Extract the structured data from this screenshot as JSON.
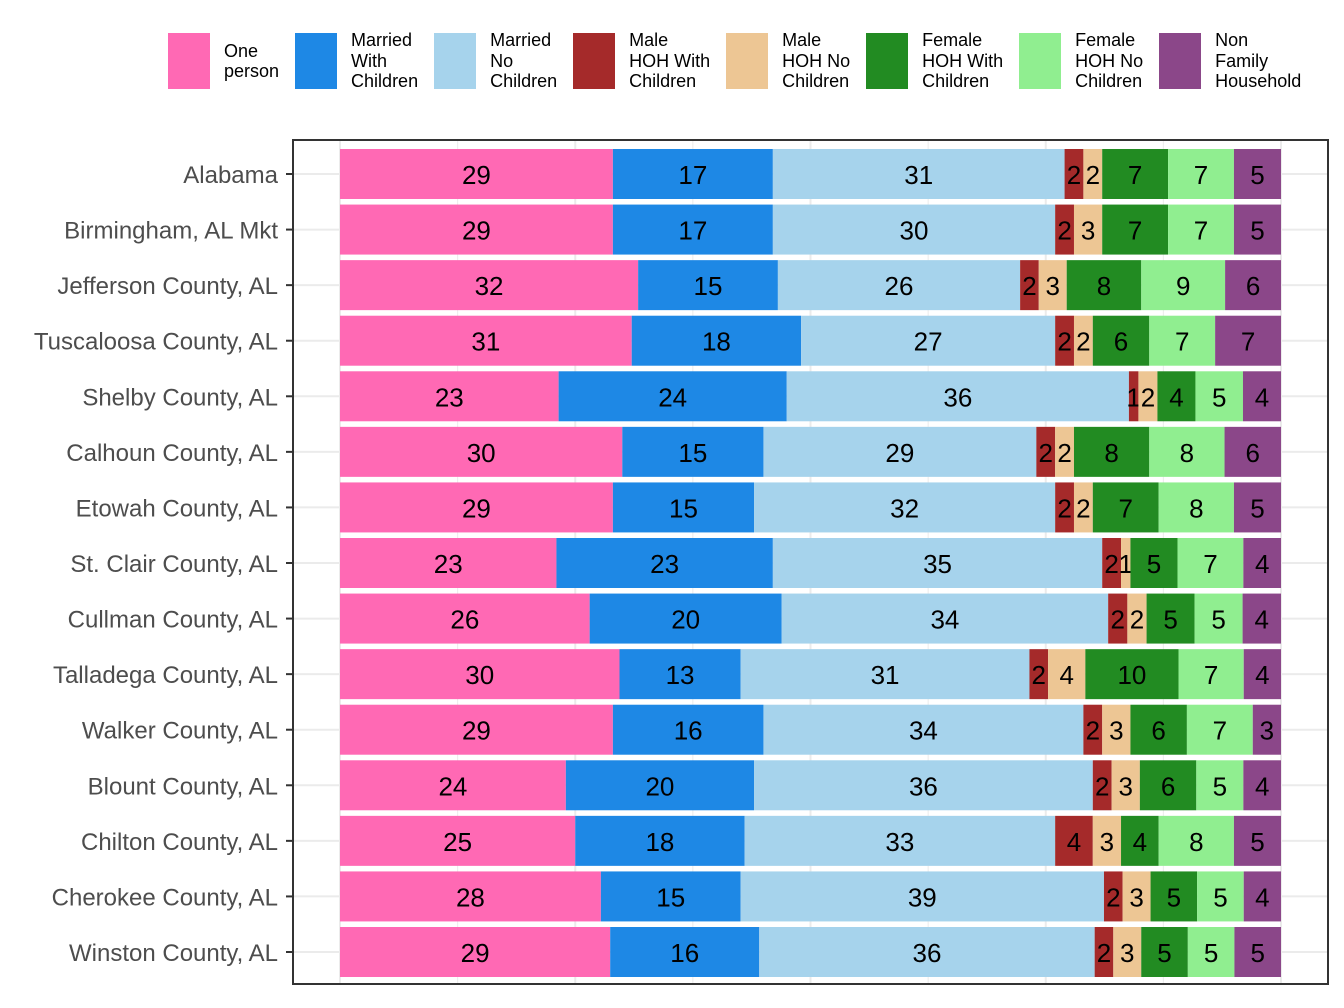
{
  "chart_data": {
    "type": "bar",
    "orientation": "horizontal",
    "stacked": true,
    "normalized": true,
    "xlim": [
      0,
      100
    ],
    "grid": true,
    "legend_position": "top",
    "categories": [
      "Alabama",
      "Birmingham, AL Mkt",
      "Jefferson County, AL",
      "Tuscaloosa County, AL",
      "Shelby County, AL",
      "Calhoun County, AL",
      "Etowah County, AL",
      "St. Clair County, AL",
      "Cullman County, AL",
      "Talladega County, AL",
      "Walker County, AL",
      "Blount County, AL",
      "Chilton County, AL",
      "Cherokee County, AL",
      "Winston County, AL"
    ],
    "series": [
      {
        "name": "One\nperson",
        "color": "#FF69B4",
        "values": [
          29,
          29,
          32,
          31,
          23,
          30,
          29,
          23,
          26,
          30,
          29,
          24,
          25,
          28,
          29
        ]
      },
      {
        "name": "Married\nWith\nChildren",
        "color": "#1E88E5",
        "values": [
          17,
          17,
          15,
          18,
          24,
          15,
          15,
          23,
          20,
          13,
          16,
          20,
          18,
          15,
          16
        ]
      },
      {
        "name": "Married\nNo\nChildren",
        "color": "#A6D3EC",
        "values": [
          31,
          30,
          26,
          27,
          36,
          29,
          32,
          35,
          34,
          31,
          34,
          36,
          33,
          39,
          36
        ]
      },
      {
        "name": "Male\nHOH With\nChildren",
        "color": "#A52A2A",
        "values": [
          2,
          2,
          2,
          2,
          1,
          2,
          2,
          2,
          2,
          2,
          2,
          2,
          4,
          2,
          2
        ]
      },
      {
        "name": "Male\nHOH No\nChildren",
        "color": "#EDC694",
        "values": [
          2,
          3,
          3,
          2,
          2,
          2,
          2,
          1,
          2,
          4,
          3,
          3,
          3,
          3,
          3
        ]
      },
      {
        "name": "Female\nHOH With\nChildren",
        "color": "#228B22",
        "values": [
          7,
          7,
          8,
          6,
          4,
          8,
          7,
          5,
          5,
          10,
          6,
          6,
          4,
          5,
          5
        ]
      },
      {
        "name": "Female\nHOH No\nChildren",
        "color": "#90EE90",
        "values": [
          7,
          7,
          9,
          7,
          5,
          8,
          8,
          7,
          5,
          7,
          7,
          5,
          8,
          5,
          5
        ]
      },
      {
        "name": "Non\nFamily\nHousehold",
        "color": "#8B4789",
        "values": [
          5,
          5,
          6,
          7,
          4,
          6,
          5,
          4,
          4,
          4,
          3,
          4,
          5,
          4,
          5
        ]
      }
    ]
  }
}
